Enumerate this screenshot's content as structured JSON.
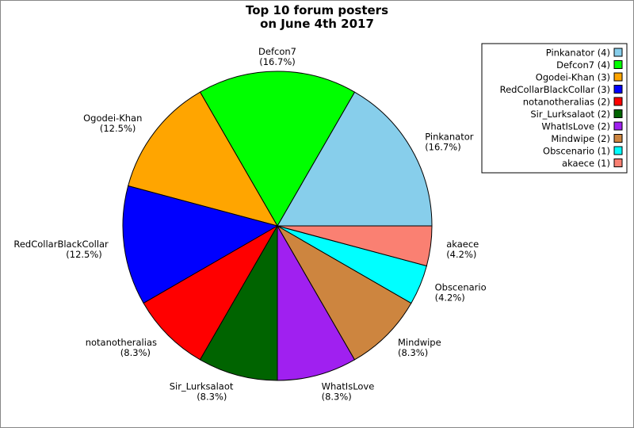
{
  "chart_data": {
    "type": "pie",
    "title_lines": [
      "Top 10 forum posters",
      "on June 4th 2017"
    ],
    "categories": [
      "Pinkanator",
      "Defcon7",
      "Ogodei-Khan",
      "RedCollarBlackCollar",
      "notanotheralias",
      "Sir_Lurksalaot",
      "WhatIsLove",
      "Mindwipe",
      "Obscenario",
      "akaece"
    ],
    "values": [
      4,
      4,
      3,
      3,
      2,
      2,
      2,
      2,
      1,
      1
    ],
    "percent_labels": [
      "(16.7%)",
      "(16.7%)",
      "(12.5%)",
      "(12.5%)",
      "(8.3%)",
      "(8.3%)",
      "(8.3%)",
      "(8.3%)",
      "(4.2%)",
      "(4.2%)"
    ],
    "legend_labels": [
      "Pinkanator (4)",
      "Defcon7 (4)",
      "Ogodei-Khan (3)",
      "RedCollarBlackCollar (3)",
      "notanotheralias (2)",
      "Sir_Lurksalaot (2)",
      "WhatIsLove (2)",
      "Mindwipe (2)",
      "Obscenario (1)",
      "akaece (1)"
    ],
    "colors": [
      "#87ceeb",
      "#00ff00",
      "#ffa500",
      "#0000ff",
      "#ff0000",
      "#006400",
      "#a020f0",
      "#cd853f",
      "#00ffff",
      "#fa8072"
    ],
    "start_direction": "east",
    "direction": "counterclockwise",
    "legend_position": "top-right"
  }
}
